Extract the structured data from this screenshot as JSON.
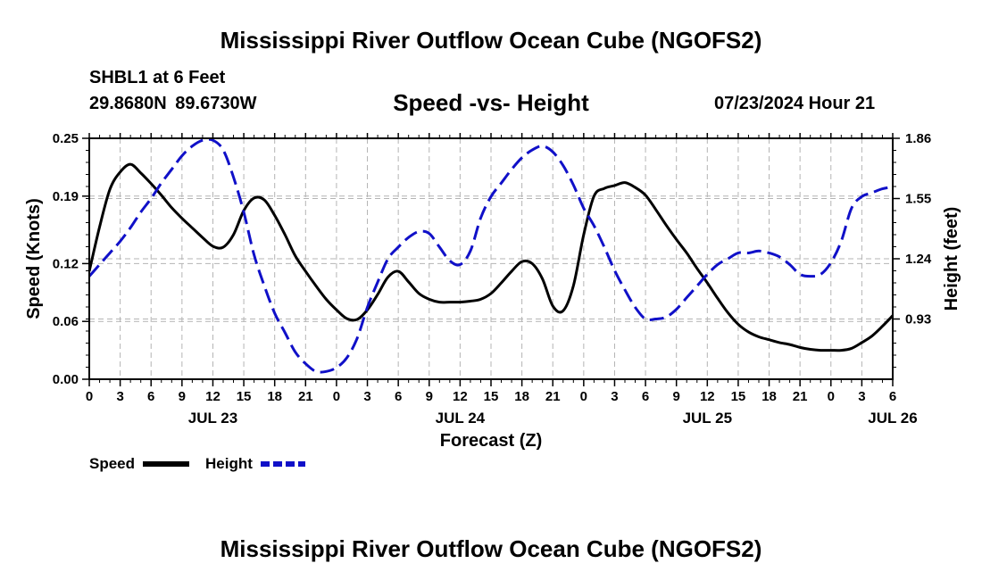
{
  "header": {
    "title": "Mississippi River Outflow Ocean Cube (NGOFS2)",
    "station": "SHBL1 at 6 Feet",
    "coordinates": "29.8680N  89.6730W",
    "subtitle": "Speed -vs- Height",
    "datestamp": "07/23/2024 Hour 21"
  },
  "footer": {
    "title": "Mississippi River Outflow Ocean Cube (NGOFS2)"
  },
  "colors": {
    "speed": "#000000",
    "height": "#1010c8",
    "grid": "#b4b4b4"
  },
  "chart_data": {
    "type": "line",
    "title": "Speed -vs- Height",
    "xlabel": "Forecast (Z)",
    "ylabel": "Speed (Knots)",
    "y2label": "Height (feet)",
    "x_range_hours": [
      0,
      78
    ],
    "x_tick_step_hours": 3,
    "x_tick_labels": [
      "0",
      "3",
      "6",
      "9",
      "12",
      "15",
      "18",
      "21",
      "0",
      "3",
      "6",
      "9",
      "12",
      "15",
      "18",
      "21",
      "0",
      "3",
      "6",
      "9",
      "12",
      "15",
      "18",
      "21",
      "0",
      "3",
      "6"
    ],
    "day_labels": [
      {
        "hour": 12,
        "label": "JUL 23"
      },
      {
        "hour": 36,
        "label": "JUL 24"
      },
      {
        "hour": 60,
        "label": "JUL 25"
      },
      {
        "hour": 78,
        "label": "JUL 26"
      }
    ],
    "ylim": [
      0,
      0.25
    ],
    "y_ticks": [
      0.0,
      0.06,
      0.12,
      0.19,
      0.25
    ],
    "y_tick_labels": [
      "0.00",
      "0.06",
      "0.12",
      "0.19",
      "0.25"
    ],
    "y2lim": [
      0.62,
      1.86
    ],
    "y2_ticks": [
      0.93,
      1.24,
      1.55,
      1.86
    ],
    "y2_tick_labels": [
      "0.93",
      "1.24",
      "1.55",
      "1.86"
    ],
    "grid": true,
    "legend": [
      {
        "name": "Speed",
        "style": "solid"
      },
      {
        "name": "Height",
        "style": "dashed"
      }
    ],
    "series": [
      {
        "name": "Speed",
        "axis": "left",
        "style": "solid",
        "x": [
          0,
          1,
          2,
          3,
          4,
          5,
          6,
          7,
          8,
          9,
          10,
          11,
          12,
          13,
          14,
          15,
          16,
          17,
          18,
          19,
          20,
          21,
          22,
          23,
          24,
          25,
          26,
          27,
          28,
          29,
          30,
          31,
          32,
          33,
          34,
          35,
          36,
          37,
          38,
          39,
          40,
          41,
          42,
          43,
          44,
          45,
          46,
          47,
          48,
          49,
          50,
          51,
          52,
          53,
          54,
          55,
          56,
          57,
          58,
          59,
          60,
          61,
          62,
          63,
          64,
          65,
          66,
          67,
          68,
          69,
          70,
          71,
          72,
          73,
          74,
          75,
          76,
          77,
          78
        ],
        "values": [
          0.112,
          0.158,
          0.197,
          0.215,
          0.223,
          0.214,
          0.203,
          0.191,
          0.178,
          0.167,
          0.157,
          0.147,
          0.138,
          0.137,
          0.15,
          0.175,
          0.188,
          0.186,
          0.17,
          0.15,
          0.128,
          0.112,
          0.097,
          0.083,
          0.072,
          0.063,
          0.062,
          0.072,
          0.088,
          0.106,
          0.112,
          0.101,
          0.089,
          0.083,
          0.08,
          0.08,
          0.08,
          0.081,
          0.083,
          0.089,
          0.1,
          0.112,
          0.122,
          0.12,
          0.104,
          0.076,
          0.071,
          0.097,
          0.15,
          0.19,
          0.198,
          0.201,
          0.204,
          0.199,
          0.191,
          0.176,
          0.16,
          0.145,
          0.131,
          0.115,
          0.1,
          0.084,
          0.069,
          0.057,
          0.049,
          0.044,
          0.041,
          0.038,
          0.036,
          0.033,
          0.031,
          0.03,
          0.03,
          0.03,
          0.032,
          0.038,
          0.045,
          0.055,
          0.066
        ]
      },
      {
        "name": "Height",
        "axis": "right",
        "style": "dashed",
        "x": [
          0,
          1,
          2,
          3,
          4,
          5,
          6,
          7,
          8,
          9,
          10,
          11,
          12,
          13,
          14,
          15,
          16,
          17,
          18,
          19,
          20,
          21,
          22,
          23,
          24,
          25,
          26,
          27,
          28,
          29,
          30,
          31,
          32,
          33,
          34,
          35,
          36,
          37,
          38,
          39,
          40,
          41,
          42,
          43,
          44,
          45,
          46,
          47,
          48,
          49,
          50,
          51,
          52,
          53,
          54,
          55,
          56,
          57,
          58,
          59,
          60,
          61,
          62,
          63,
          64,
          65,
          66,
          67,
          68,
          69,
          70,
          71,
          72,
          73,
          74,
          75,
          76,
          77,
          78
        ],
        "values": [
          1.15,
          1.21,
          1.27,
          1.33,
          1.4,
          1.48,
          1.55,
          1.63,
          1.7,
          1.77,
          1.82,
          1.85,
          1.85,
          1.8,
          1.66,
          1.48,
          1.26,
          1.1,
          0.96,
          0.86,
          0.76,
          0.7,
          0.66,
          0.66,
          0.68,
          0.73,
          0.83,
          0.99,
          1.12,
          1.24,
          1.3,
          1.35,
          1.38,
          1.37,
          1.3,
          1.23,
          1.21,
          1.28,
          1.45,
          1.56,
          1.63,
          1.7,
          1.76,
          1.8,
          1.82,
          1.79,
          1.72,
          1.62,
          1.5,
          1.41,
          1.3,
          1.18,
          1.08,
          0.99,
          0.93,
          0.93,
          0.94,
          0.98,
          1.04,
          1.1,
          1.16,
          1.21,
          1.24,
          1.27,
          1.27,
          1.28,
          1.27,
          1.25,
          1.21,
          1.16,
          1.15,
          1.16,
          1.22,
          1.33,
          1.5,
          1.56,
          1.58,
          1.6,
          1.61
        ]
      }
    ]
  }
}
